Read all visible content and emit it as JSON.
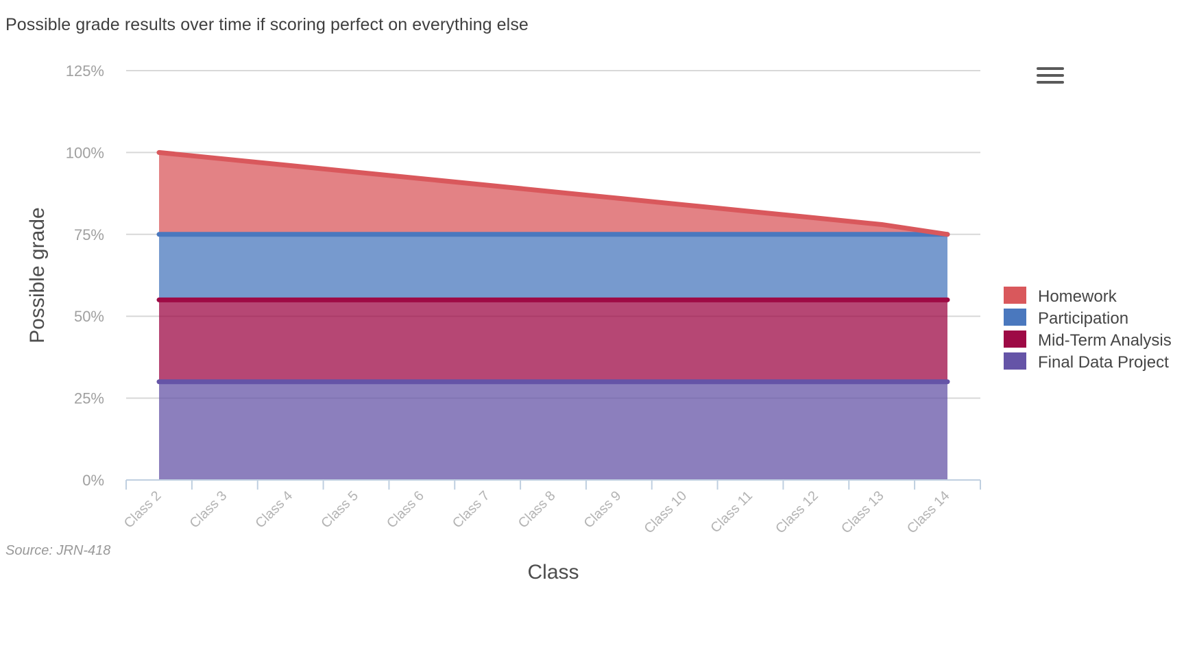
{
  "chart": {
    "title": "Possible grade results over time if scoring perfect on everything else",
    "source": "Source: JRN-418",
    "menu_icon": "hamburger-menu-icon"
  },
  "chart_data": {
    "type": "area",
    "stacked": true,
    "title": "Possible grade results over time if scoring perfect on everything else",
    "xlabel": "Class",
    "ylabel": "Possible grade",
    "ylim": [
      0,
      125
    ],
    "yticks": [
      "0%",
      "25%",
      "50%",
      "75%",
      "100%",
      "125%"
    ],
    "categories": [
      "Class 2",
      "Class 3",
      "Class 4",
      "Class 5",
      "Class 6",
      "Class 7",
      "Class 8",
      "Class 9",
      "Class 10",
      "Class 11",
      "Class 12",
      "Class 13",
      "Class 14"
    ],
    "legend_position": "right",
    "grid": true,
    "series": [
      {
        "name": "Homework",
        "color": "#d9585c",
        "values": [
          25,
          23,
          21,
          19,
          17,
          15,
          13,
          11,
          9,
          7,
          5,
          3,
          0
        ]
      },
      {
        "name": "Participation",
        "color": "#4a78be",
        "values": [
          20,
          20,
          20,
          20,
          20,
          20,
          20,
          20,
          20,
          20,
          20,
          20,
          20
        ]
      },
      {
        "name": "Mid-Term Analysis",
        "color": "#9e0a45",
        "values": [
          25,
          25,
          25,
          25,
          25,
          25,
          25,
          25,
          25,
          25,
          25,
          25,
          25
        ]
      },
      {
        "name": "Final Data Project",
        "color": "#6554a7",
        "values": [
          30,
          30,
          30,
          30,
          30,
          30,
          30,
          30,
          30,
          30,
          30,
          30,
          30
        ]
      }
    ]
  }
}
